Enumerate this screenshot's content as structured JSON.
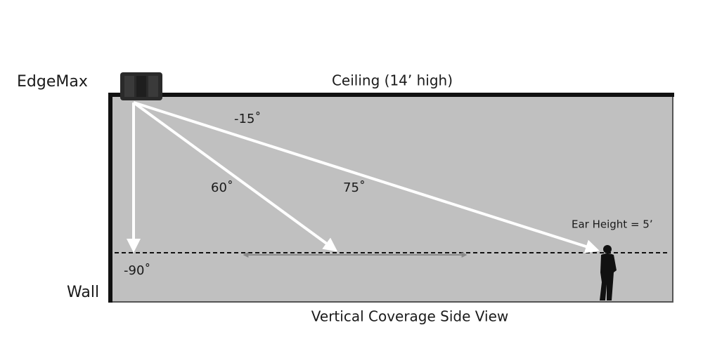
{
  "device": {
    "label": "EdgeMax"
  },
  "ceiling": {
    "label": "Ceiling (14’ high)"
  },
  "wall": {
    "label": "Wall"
  },
  "angles": [
    {
      "label": "-15˚"
    },
    {
      "label": "60˚"
    },
    {
      "label": "75˚"
    },
    {
      "label": "-90˚"
    }
  ],
  "listener": {
    "label": "Ear Height = 5’"
  },
  "caption": "Vertical Coverage Side View"
}
